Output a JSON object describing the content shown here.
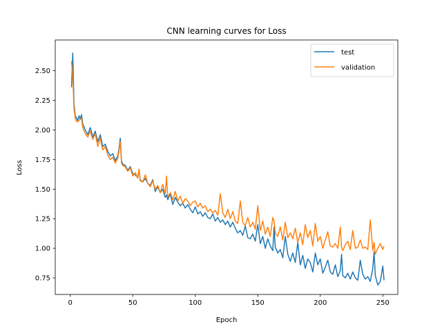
{
  "chart_data": {
    "type": "line",
    "title": "CNN learning curves for Loss",
    "xlabel": "Epoch",
    "ylabel": "Loss",
    "xlim": [
      -12,
      262
    ],
    "ylim": [
      0.61,
      2.76
    ],
    "xticks": [
      0,
      50,
      100,
      150,
      200,
      250
    ],
    "yticks": [
      0.75,
      1.0,
      1.25,
      1.5,
      1.75,
      2.0,
      2.25,
      2.5
    ],
    "ytick_labels": [
      "0.75",
      "1.00",
      "1.25",
      "1.50",
      "1.75",
      "2.00",
      "2.25",
      "2.50"
    ],
    "grid": false,
    "legend_position": "top-right",
    "series": [
      {
        "name": "test",
        "color": "#1f77b4",
        "x": [
          1,
          2,
          3,
          4,
          5,
          6,
          7,
          8,
          9,
          10,
          12,
          14,
          16,
          18,
          20,
          22,
          24,
          26,
          28,
          30,
          32,
          34,
          36,
          38,
          39,
          40,
          41,
          42,
          44,
          46,
          48,
          50,
          52,
          54,
          55,
          56,
          58,
          60,
          62,
          64,
          66,
          68,
          70,
          72,
          74,
          76,
          77,
          78,
          80,
          82,
          84,
          86,
          88,
          90,
          92,
          94,
          96,
          98,
          100,
          102,
          104,
          106,
          108,
          110,
          112,
          114,
          116,
          118,
          120,
          122,
          124,
          126,
          128,
          130,
          132,
          134,
          136,
          138,
          140,
          142,
          144,
          146,
          148,
          150,
          152,
          154,
          156,
          158,
          160,
          162,
          163,
          164,
          166,
          168,
          170,
          172,
          174,
          176,
          178,
          180,
          182,
          184,
          186,
          188,
          190,
          192,
          194,
          196,
          198,
          200,
          202,
          204,
          206,
          208,
          210,
          212,
          214,
          216,
          217,
          218,
          220,
          222,
          224,
          226,
          228,
          230,
          232,
          234,
          236,
          238,
          240,
          242,
          243,
          244,
          246,
          248,
          250,
          251
        ],
        "y": [
          2.36,
          2.65,
          2.22,
          2.12,
          2.1,
          2.08,
          2.12,
          2.09,
          2.13,
          2.05,
          2.0,
          1.96,
          2.02,
          1.94,
          1.99,
          1.9,
          1.96,
          1.86,
          1.88,
          1.82,
          1.78,
          1.8,
          1.74,
          1.78,
          1.84,
          1.93,
          1.74,
          1.71,
          1.7,
          1.66,
          1.69,
          1.63,
          1.62,
          1.6,
          1.66,
          1.58,
          1.56,
          1.59,
          1.55,
          1.53,
          1.58,
          1.48,
          1.52,
          1.47,
          1.5,
          1.43,
          1.45,
          1.41,
          1.46,
          1.37,
          1.43,
          1.39,
          1.36,
          1.38,
          1.34,
          1.37,
          1.33,
          1.3,
          1.35,
          1.29,
          1.31,
          1.27,
          1.3,
          1.26,
          1.25,
          1.29,
          1.23,
          1.26,
          1.22,
          1.24,
          1.2,
          1.23,
          1.18,
          1.22,
          1.17,
          1.13,
          1.15,
          1.11,
          1.19,
          1.09,
          1.08,
          1.12,
          1.06,
          1.2,
          1.04,
          1.1,
          1.0,
          1.08,
          1.02,
          0.98,
          1.18,
          1.01,
          0.96,
          0.99,
          0.92,
          1.1,
          0.95,
          0.89,
          0.96,
          0.88,
          1.05,
          0.86,
          0.94,
          0.83,
          0.91,
          0.88,
          0.8,
          0.96,
          0.86,
          0.91,
          0.79,
          0.84,
          0.9,
          0.8,
          0.78,
          0.86,
          0.76,
          0.81,
          0.95,
          0.77,
          0.75,
          0.79,
          0.74,
          0.8,
          0.75,
          0.73,
          0.9,
          0.78,
          0.74,
          0.76,
          0.72,
          0.83,
          0.97,
          0.77,
          0.69,
          0.72,
          0.85,
          0.73
        ]
      },
      {
        "name": "validation",
        "color": "#ff7f0e",
        "x": [
          1,
          2,
          3,
          4,
          5,
          6,
          7,
          8,
          9,
          10,
          12,
          14,
          16,
          18,
          20,
          22,
          24,
          26,
          28,
          30,
          32,
          34,
          36,
          38,
          39,
          40,
          41,
          42,
          44,
          46,
          48,
          50,
          52,
          54,
          55,
          56,
          58,
          60,
          62,
          64,
          66,
          68,
          70,
          72,
          74,
          76,
          77,
          78,
          80,
          82,
          84,
          86,
          88,
          90,
          92,
          94,
          96,
          98,
          100,
          102,
          104,
          106,
          108,
          110,
          112,
          114,
          116,
          118,
          120,
          122,
          124,
          126,
          128,
          130,
          132,
          134,
          136,
          138,
          140,
          142,
          144,
          146,
          148,
          150,
          152,
          154,
          156,
          158,
          160,
          162,
          163,
          164,
          166,
          168,
          170,
          172,
          174,
          176,
          178,
          180,
          182,
          184,
          186,
          188,
          190,
          192,
          194,
          196,
          198,
          200,
          202,
          204,
          206,
          208,
          210,
          212,
          214,
          216,
          217,
          218,
          220,
          222,
          224,
          226,
          228,
          230,
          232,
          234,
          236,
          238,
          240,
          242,
          243,
          244,
          246,
          248,
          250,
          251
        ],
        "y": [
          2.58,
          2.45,
          2.18,
          2.1,
          2.07,
          2.07,
          2.08,
          2.09,
          2.1,
          2.02,
          1.97,
          1.94,
          1.99,
          1.92,
          1.97,
          1.86,
          1.93,
          1.83,
          1.86,
          1.79,
          1.75,
          1.77,
          1.72,
          1.76,
          1.82,
          1.9,
          1.72,
          1.7,
          1.69,
          1.65,
          1.68,
          1.61,
          1.64,
          1.59,
          1.67,
          1.57,
          1.56,
          1.62,
          1.55,
          1.52,
          1.57,
          1.5,
          1.53,
          1.47,
          1.54,
          1.46,
          1.61,
          1.43,
          1.47,
          1.41,
          1.48,
          1.4,
          1.44,
          1.38,
          1.42,
          1.4,
          1.36,
          1.39,
          1.4,
          1.35,
          1.38,
          1.34,
          1.36,
          1.31,
          1.33,
          1.3,
          1.32,
          1.28,
          1.46,
          1.3,
          1.26,
          1.33,
          1.25,
          1.31,
          1.23,
          1.21,
          1.4,
          1.22,
          1.19,
          1.26,
          1.18,
          1.22,
          1.16,
          1.36,
          1.15,
          1.23,
          1.12,
          1.18,
          1.1,
          1.26,
          1.23,
          1.13,
          1.1,
          1.18,
          1.07,
          1.22,
          1.09,
          1.13,
          1.08,
          1.17,
          1.05,
          1.13,
          1.03,
          1.2,
          1.09,
          1.15,
          1.02,
          1.21,
          1.06,
          1.1,
          1.0,
          1.07,
          1.14,
          1.02,
          1.01,
          1.04,
          1.0,
          1.18,
          1.01,
          0.98,
          1.03,
          1.06,
          0.99,
          1.15,
          1.0,
          1.01,
          1.07,
          1.0,
          1.01,
          0.99,
          1.24,
          0.98,
          1.05,
          0.95,
          1.0,
          1.04,
          0.99,
          1.02
        ]
      }
    ]
  }
}
